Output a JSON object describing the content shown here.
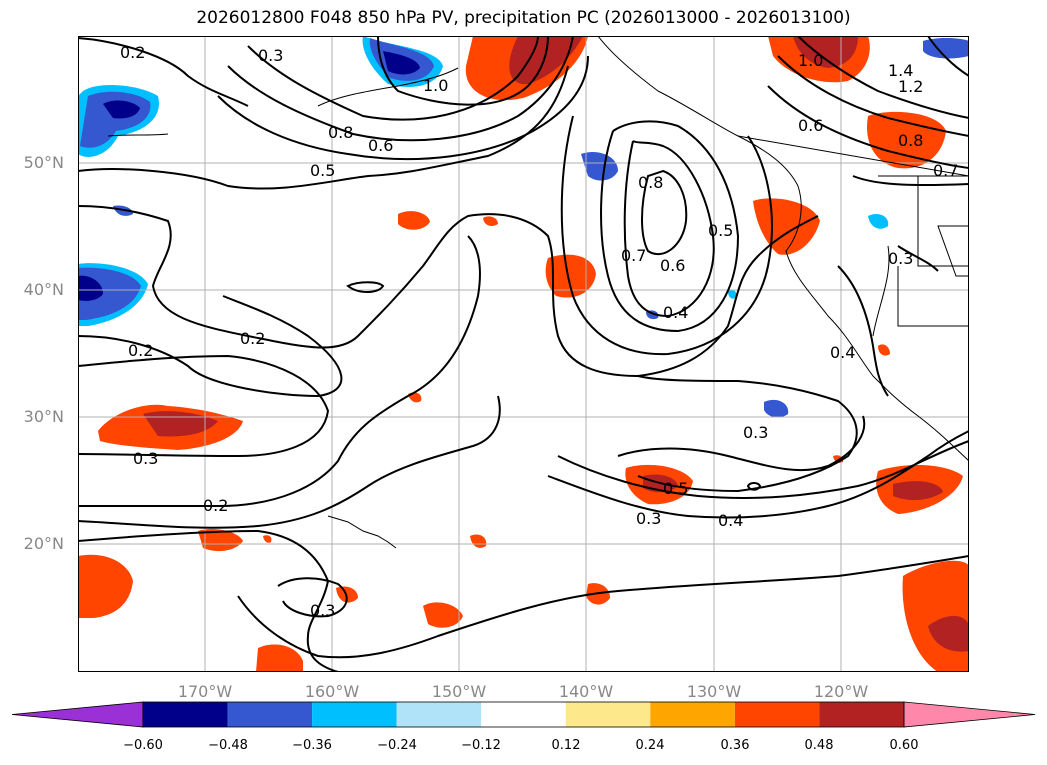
{
  "title": "2026012800 F048 850 hPa PV, precipitation PC (2026013000 - 2026013100)",
  "latitude_labels": [
    "50°N",
    "40°N",
    "30°N",
    "20°N"
  ],
  "longitude_labels": [
    "170°W",
    "160°W",
    "150°W",
    "140°W",
    "130°W",
    "120°W"
  ],
  "contour_labels": [
    "0.2",
    "1.0",
    "1.4",
    "1.2",
    "0.8",
    "0.6",
    "0.5",
    "0.8",
    "0.7",
    "0.6",
    "0.5",
    "0.4",
    "0.7",
    "0.3",
    "0.4",
    "0.2",
    "0.2",
    "0.3",
    "0.3",
    "0.3",
    "0.5",
    "0.3",
    "0.4",
    "0.2",
    "0.3",
    "0.6",
    "0.8",
    "1.0"
  ],
  "colorbar": {
    "ticks": [
      "−0.60",
      "−0.48",
      "−0.36",
      "−0.24",
      "−0.12",
      "0.12",
      "0.24",
      "0.36",
      "0.48",
      "0.60"
    ],
    "colors": [
      "#9b30d6",
      "#00008b",
      "#3558d0",
      "#00bfff",
      "#b0e2f8",
      "#ffffff",
      "#fde98c",
      "#ffa500",
      "#ff4500",
      "#b22222",
      "#ff88aa"
    ]
  }
}
